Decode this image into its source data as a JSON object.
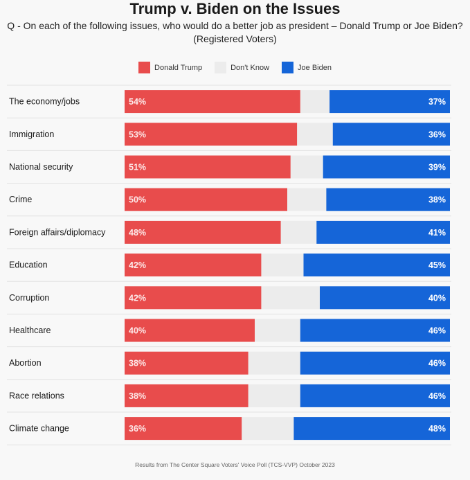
{
  "chart_data": {
    "type": "bar",
    "orientation": "horizontal",
    "stacked": true,
    "title": "Trump v. Biden on the Issues",
    "subtitle": "Q - On each of the following issues, who would do a better job as president – Donald Trump or Joe Biden? (Registered Voters)",
    "subtitle_lines": [
      "Q - On each of the following issues, who would do a better job as president – Donald Trump or Joe Biden?",
      "(Registered Voters)"
    ],
    "xlim": [
      0,
      100
    ],
    "legend_position": "top-center",
    "categories": [
      "The economy/jobs",
      "Immigration",
      "National security",
      "Crime",
      "Foreign affairs/diplomacy",
      "Education",
      "Corruption",
      "Healthcare",
      "Abortion",
      "Race relations",
      "Climate change"
    ],
    "series": [
      {
        "name": "Donald Trump",
        "color": "#e84c4c",
        "values": [
          54,
          53,
          51,
          50,
          48,
          42,
          42,
          40,
          38,
          38,
          36
        ]
      },
      {
        "name": "Don't Know",
        "color": "#ececec",
        "values": [
          9,
          11,
          10,
          12,
          11,
          13,
          18,
          14,
          16,
          16,
          16
        ]
      },
      {
        "name": "Joe Biden",
        "color": "#1565d8",
        "values": [
          37,
          36,
          39,
          38,
          41,
          45,
          40,
          46,
          46,
          46,
          48
        ]
      }
    ],
    "source": "Results from The Center Square Voters' Voice Poll (TCS-VVP) October 2023"
  }
}
